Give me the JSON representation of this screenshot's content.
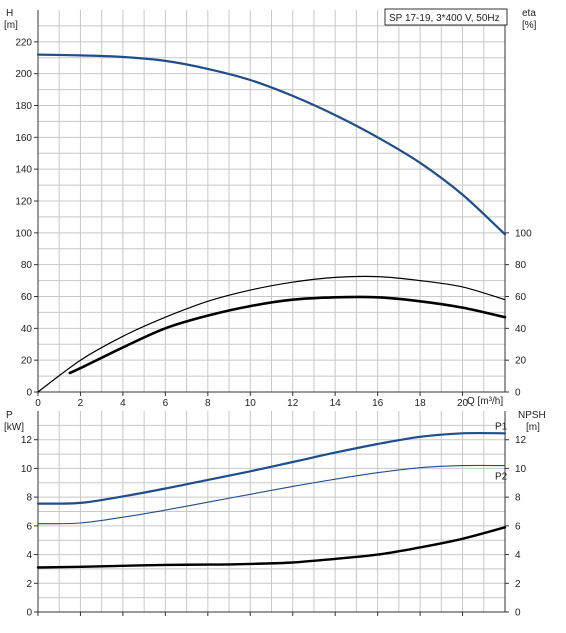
{
  "colors": {
    "blue": "#1f4e8c",
    "black": "#000000",
    "grid": "#c8c8c8"
  },
  "chart_data": [
    {
      "type": "line",
      "title": "SP 17-19, 3*400 V, 50Hz",
      "xlabel": "Q [m³/h]",
      "ylabel_left": [
        "H",
        "[m]"
      ],
      "ylabel_right": [
        "eta",
        "[%]"
      ],
      "x_ticks": [
        "0",
        "2",
        "4",
        "6",
        "8",
        "10",
        "12",
        "14",
        "16",
        "18",
        "20"
      ],
      "y_ticks_left": [
        "0",
        "20",
        "40",
        "60",
        "80",
        "100",
        "120",
        "140",
        "160",
        "180",
        "200",
        "220"
      ],
      "y_ticks_right": [
        "0",
        "20",
        "40",
        "60",
        "80",
        "100"
      ],
      "xlim": [
        0,
        22
      ],
      "ylim": [
        0,
        240
      ],
      "grid": true,
      "series": [
        {
          "color": "#1f4e8c",
          "x": [
            0,
            2,
            4,
            6,
            8,
            10,
            12,
            14,
            16,
            18,
            20,
            22
          ],
          "y": [
            212,
            211.5,
            210.5,
            208,
            203,
            196,
            186,
            174,
            160,
            144,
            124,
            99
          ]
        },
        {
          "color": "#000000",
          "x": [
            0,
            2,
            4,
            6,
            8,
            10,
            12,
            14,
            16,
            18,
            20,
            22
          ],
          "y": [
            0,
            20,
            35,
            47,
            57,
            64,
            69,
            72,
            72.5,
            70,
            66,
            58
          ]
        },
        {
          "color": "#000000",
          "x": [
            1.5,
            2,
            4,
            6,
            8,
            10,
            12,
            14,
            16,
            18,
            20,
            22
          ],
          "y": [
            12,
            15,
            28,
            40,
            48,
            54,
            58,
            59.5,
            59.5,
            57,
            53,
            47
          ]
        }
      ]
    },
    {
      "type": "line",
      "ylabel_left": [
        "P",
        "[kW]"
      ],
      "ylabel_right": [
        "NPSH",
        "[m]"
      ],
      "x_ticks": [
        "0",
        "2",
        "4",
        "6",
        "8",
        "10",
        "12",
        "14",
        "16",
        "18",
        "20"
      ],
      "y_ticks_left": [
        "0",
        "2",
        "4",
        "6",
        "8",
        "10",
        "12"
      ],
      "y_ticks_right": [
        "0",
        "2",
        "4",
        "6",
        "8",
        "10",
        "12"
      ],
      "xlim": [
        0,
        22
      ],
      "ylim": [
        0,
        14
      ],
      "grid": true,
      "series": [
        {
          "name": "P1",
          "color": "#1f4e8c",
          "x": [
            0,
            2,
            4,
            6,
            8,
            10,
            12,
            14,
            16,
            18,
            20,
            22
          ],
          "y": [
            7.55,
            7.6,
            8.05,
            8.6,
            9.2,
            9.8,
            10.45,
            11.1,
            11.7,
            12.2,
            12.45,
            12.45
          ]
        },
        {
          "name": "P2",
          "color": "#1f4e8c",
          "x": [
            0,
            2,
            4,
            6,
            8,
            10,
            12,
            14,
            16,
            18,
            20,
            22
          ],
          "y": [
            6.15,
            6.2,
            6.6,
            7.1,
            7.65,
            8.2,
            8.75,
            9.25,
            9.7,
            10.05,
            10.2,
            10.2
          ]
        },
        {
          "color": "#000000",
          "x": [
            0,
            2,
            4,
            6,
            8,
            10,
            12,
            14,
            16,
            18,
            20,
            22
          ],
          "y": [
            3.1,
            3.15,
            3.22,
            3.28,
            3.3,
            3.35,
            3.45,
            3.7,
            4.0,
            4.5,
            5.1,
            5.9
          ]
        }
      ]
    }
  ]
}
